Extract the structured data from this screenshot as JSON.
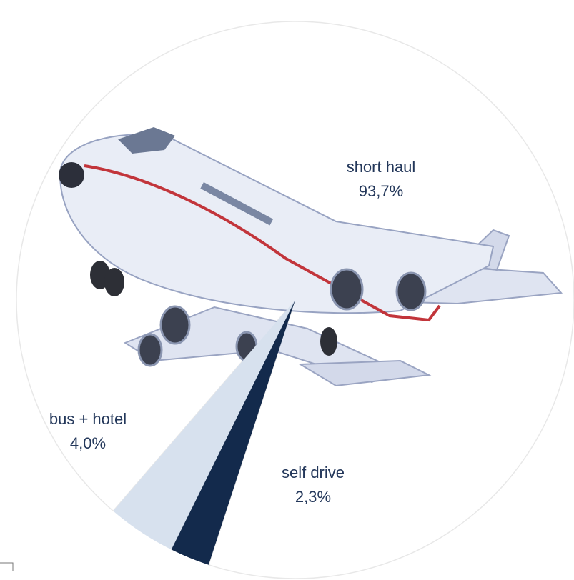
{
  "chart_data": {
    "type": "pie",
    "categories": [
      "short haul",
      "bus + hotel",
      "self drive"
    ],
    "values": [
      93.7,
      4.0,
      2.3
    ],
    "value_labels": [
      "93,7%",
      "4,0%",
      "2,3%"
    ],
    "colors": [
      "#ffffff",
      "#d7e1ee",
      "#132a4c"
    ]
  }
}
